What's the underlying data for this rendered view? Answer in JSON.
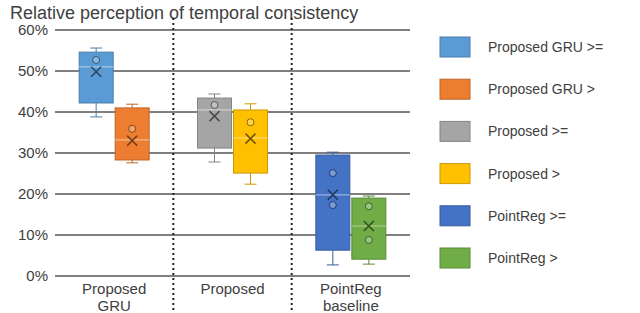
{
  "chart_data": {
    "type": "box",
    "title": "Relative perception of temporal consistency",
    "categories": [
      "Proposed GRU",
      "Proposed",
      "PointReg baseline"
    ],
    "ylim": [
      0,
      60
    ],
    "yticks": [
      {
        "value": 0,
        "label": "0%"
      },
      {
        "value": 10,
        "label": "10%"
      },
      {
        "value": 20,
        "label": "20%"
      },
      {
        "value": 30,
        "label": "30%"
      },
      {
        "value": 40,
        "label": "40%"
      },
      {
        "value": 50,
        "label": "50%"
      },
      {
        "value": 60,
        "label": "60%"
      }
    ],
    "grid": true,
    "legend": "right",
    "series": [
      {
        "name": "Proposed GRU >=",
        "color": "#5b9bd5",
        "min": [
          38.8,
          null,
          null
        ],
        "q1": [
          42.2,
          null,
          null
        ],
        "median": [
          51,
          null,
          null
        ],
        "q3": [
          54.6,
          null,
          null
        ],
        "max": [
          55.6,
          null,
          null
        ],
        "mean": [
          49.8,
          null,
          null
        ],
        "points": [
          [
            52.7
          ],
          null,
          null
        ]
      },
      {
        "name": "Proposed GRU >",
        "color": "#ed7d31",
        "min": [
          27.6,
          null,
          null
        ],
        "q1": [
          28.3,
          null,
          null
        ],
        "median": [
          33.2,
          null,
          null
        ],
        "q3": [
          41,
          null,
          null
        ],
        "max": [
          41.9,
          null,
          null
        ],
        "mean": [
          33,
          null,
          null
        ],
        "points": [
          [
            35.9
          ],
          null,
          null
        ]
      },
      {
        "name": "Proposed >=",
        "color": "#a5a5a5",
        "min": [
          null,
          27.8,
          null
        ],
        "q1": [
          null,
          31.2,
          null
        ],
        "median": [
          null,
          40.5,
          null
        ],
        "q3": [
          null,
          43.4,
          null
        ],
        "max": [
          null,
          44.4,
          null
        ],
        "mean": [
          null,
          39,
          null
        ],
        "points": [
          null,
          [
            41.7
          ],
          null
        ]
      },
      {
        "name": "Proposed >",
        "color": "#ffc000",
        "min": [
          null,
          22.4,
          null
        ],
        "q1": [
          null,
          25.1,
          null
        ],
        "median": [
          null,
          33.7,
          null
        ],
        "q3": [
          null,
          40.5,
          null
        ],
        "max": [
          null,
          42,
          null
        ],
        "mean": [
          null,
          33.5,
          null
        ],
        "points": [
          null,
          [
            37.5
          ],
          null
        ]
      },
      {
        "name": "PointReg >=",
        "color": "#4472c4",
        "min": [
          null,
          null,
          2.7
        ],
        "q1": [
          null,
          null,
          6.3
        ],
        "median": [
          null,
          null,
          19.8
        ],
        "q3": [
          null,
          null,
          29.5
        ],
        "max": [
          null,
          null,
          30.2
        ],
        "mean": [
          null,
          null,
          19.8
        ],
        "points": [
          null,
          null,
          [
            25.1,
            17.3
          ]
        ]
      },
      {
        "name": "PointReg >",
        "color": "#70ad47",
        "min": [
          null,
          null,
          2.9
        ],
        "q1": [
          null,
          null,
          4.1
        ],
        "median": [
          null,
          null,
          12.2
        ],
        "q3": [
          null,
          null,
          19
        ],
        "max": [
          null,
          null,
          19.5
        ],
        "mean": [
          null,
          null,
          12.2
        ],
        "points": [
          null,
          null,
          [
            17,
            8.8
          ]
        ]
      }
    ]
  }
}
